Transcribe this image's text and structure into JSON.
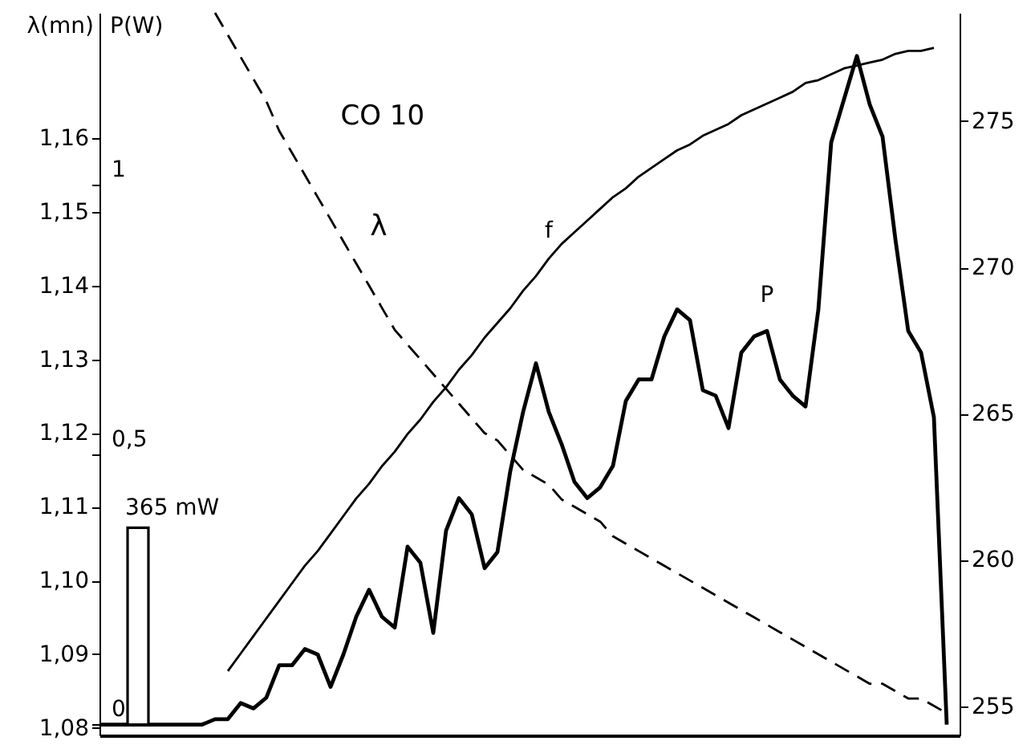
{
  "chart_data": {
    "type": "line",
    "title": "CO 10",
    "ylabel": "λ(mn)",
    "y3label": "P(W)",
    "categories": [
      null,
      null,
      null,
      null,
      null,
      null,
      null,
      null,
      null,
      null,
      null,
      null,
      null,
      null,
      null,
      null,
      null,
      null,
      null,
      null,
      null,
      null,
      null,
      null,
      null,
      null,
      null,
      null,
      null,
      null,
      null,
      null,
      null,
      null,
      null,
      null,
      null,
      null,
      null,
      null,
      null,
      null,
      null,
      null,
      null,
      null,
      null,
      null,
      null,
      null,
      null,
      null,
      null,
      null,
      null,
      null,
      null,
      null,
      null,
      null,
      null,
      null,
      null,
      null,
      null,
      null,
      null,
      null
    ],
    "ylim": [
      1.079,
      1.177
    ],
    "yticks": [
      {
        "value": 1.08,
        "label": "1,08"
      },
      {
        "value": 1.09,
        "label": "1,09"
      },
      {
        "value": 1.1,
        "label": "1,10"
      },
      {
        "value": 1.11,
        "label": "1,11"
      },
      {
        "value": 1.12,
        "label": "1,12"
      },
      {
        "value": 1.13,
        "label": "1,13"
      },
      {
        "value": 1.14,
        "label": "1,14"
      },
      {
        "value": 1.15,
        "label": "1,15"
      },
      {
        "value": 1.16,
        "label": "1,16"
      }
    ],
    "y2lim": [
      254,
      278.7
    ],
    "y2ticks": [
      255,
      260,
      265,
      270,
      275
    ],
    "y3lim": [
      -0.02,
      1.32
    ],
    "y3ticks": [
      0,
      {
        "value": 0.5,
        "label": "0,5"
      },
      1
    ],
    "tick_labels": "y",
    "grid": false,
    "annotations": [
      "365 mW"
    ],
    "series": [
      {
        "name": "λ",
        "color": "#000000",
        "line_style": "dashed",
        "values": [
          null,
          null,
          null,
          null,
          null,
          null,
          null,
          null,
          null,
          1.177,
          1.174,
          1.171,
          1.168,
          1.165,
          1.161,
          1.158,
          1.155,
          1.152,
          1.149,
          1.146,
          1.143,
          1.14,
          1.137,
          1.134,
          1.132,
          1.13,
          1.128,
          1.126,
          1.124,
          1.122,
          1.12,
          1.119,
          1.117,
          1.115,
          1.114,
          1.113,
          1.111,
          1.11,
          1.109,
          1.108,
          1.106,
          1.105,
          1.104,
          1.103,
          1.102,
          1.101,
          1.1,
          1.099,
          1.098,
          1.097,
          1.096,
          1.095,
          1.094,
          1.093,
          1.092,
          1.091,
          1.09,
          1.089,
          1.088,
          1.087,
          1.086,
          1.086,
          1.085,
          1.084,
          1.084,
          1.083,
          1.082,
          null
        ]
      },
      {
        "name": "f",
        "axis": "y2",
        "color": "#000000",
        "line_style": "solid",
        "values": [
          null,
          null,
          null,
          null,
          null,
          null,
          null,
          null,
          null,
          null,
          256.2,
          256.8,
          257.4,
          258.0,
          258.6,
          259.2,
          259.8,
          260.3,
          260.9,
          261.5,
          262.1,
          262.6,
          263.2,
          263.7,
          264.3,
          264.8,
          265.4,
          265.9,
          266.5,
          267.0,
          267.6,
          268.1,
          268.6,
          269.2,
          269.7,
          270.3,
          270.8,
          271.2,
          271.6,
          272.0,
          272.4,
          272.7,
          273.1,
          273.4,
          273.7,
          274.0,
          274.2,
          274.5,
          274.7,
          274.9,
          275.2,
          275.4,
          275.6,
          275.8,
          276.0,
          276.3,
          276.4,
          276.6,
          276.8,
          276.9,
          277.0,
          277.1,
          277.3,
          277.4,
          277.4,
          277.5,
          null,
          null
        ]
      },
      {
        "name": "P",
        "axis": "y3",
        "color": "#000000",
        "line_style": "solid",
        "values": [
          0,
          0,
          0,
          0,
          0,
          0,
          0,
          0,
          0,
          0.01,
          0.01,
          0.04,
          0.03,
          0.05,
          0.11,
          0.11,
          0.14,
          0.13,
          0.07,
          0.13,
          0.2,
          0.25,
          0.2,
          0.18,
          0.33,
          0.3,
          0.17,
          0.36,
          0.42,
          0.39,
          0.29,
          0.32,
          0.47,
          0.58,
          0.67,
          0.58,
          0.52,
          0.45,
          0.42,
          0.44,
          0.48,
          0.6,
          0.64,
          0.64,
          0.72,
          0.77,
          0.75,
          0.62,
          0.61,
          0.55,
          0.69,
          0.72,
          0.73,
          0.64,
          0.61,
          0.59,
          0.77,
          1.08,
          1.16,
          1.24,
          1.15,
          1.09,
          0.9,
          0.73,
          0.69,
          0.57,
          0,
          null
        ]
      },
      {
        "type": "bar",
        "axis": "y3",
        "color": "#ffffff",
        "values": [
          null,
          null,
          null,
          0.365,
          null,
          null,
          null,
          null,
          null,
          null,
          null,
          null,
          null,
          null,
          null,
          null,
          null,
          null,
          null,
          null,
          null,
          null,
          null,
          null,
          null,
          null,
          null,
          null,
          null,
          null,
          null,
          null,
          null,
          null,
          null,
          null,
          null,
          null,
          null,
          null,
          null,
          null,
          null,
          null,
          null,
          null,
          null,
          null,
          null,
          null,
          null,
          null,
          null,
          null,
          null,
          null,
          null,
          null,
          null,
          null,
          null,
          null,
          null,
          null,
          null,
          null,
          null,
          null
        ]
      }
    ]
  }
}
